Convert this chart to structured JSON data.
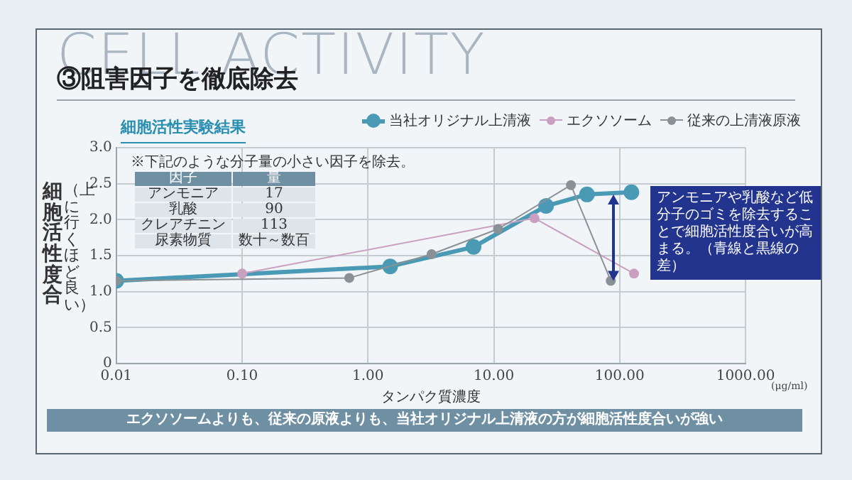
{
  "chart_data": {
    "type": "line",
    "title": "③阻害因子を徹底除去",
    "subtitle": "細胞活性実験結果",
    "xlabel": "タンパク質濃度",
    "ylabel": "細胞活性度合",
    "log": "x",
    "xlim": [
      0.01,
      1000
    ],
    "xticks": [
      {
        "value": 0.01,
        "label": "0.01"
      },
      {
        "value": 0.1,
        "label": "0.10"
      },
      {
        "value": 1,
        "label": "1.00"
      },
      {
        "value": 10,
        "label": "10.00"
      },
      {
        "value": 100,
        "label": "100.00"
      },
      {
        "value": 1000,
        "label": "1000.00"
      }
    ],
    "ylim": [
      0,
      3
    ],
    "yticks": [
      0,
      {
        "value": 0.5,
        "label": "0.5"
      },
      {
        "value": 1,
        "label": "1.0"
      },
      {
        "value": 1.5,
        "label": "1.5"
      },
      {
        "value": 2,
        "label": "2.0"
      },
      {
        "value": 2.5,
        "label": "2.5"
      },
      {
        "value": 3,
        "label": "3.0"
      }
    ],
    "grid": true,
    "legend": "top right",
    "marker": "circle",
    "series": [
      {
        "name": "当社オリジナル上清液",
        "color": "#4a9ab5",
        "x": [
          0.01,
          1.5,
          6.9,
          26,
          55,
          124
        ],
        "values": [
          1.15,
          1.35,
          1.62,
          2.19,
          2.35,
          2.38
        ]
      },
      {
        "name": "エクソソーム",
        "color": "#c9a0c0",
        "x": [
          0.1,
          21,
          130
        ],
        "values": [
          1.25,
          2.02,
          1.25
        ]
      },
      {
        "name": "従来の上清液原液",
        "color": "#8a9196",
        "x": [
          0.01,
          0.71,
          3.2,
          10.8,
          41,
          85
        ],
        "values": [
          1.15,
          1.19,
          1.52,
          1.87,
          2.48,
          1.15
        ]
      }
    ],
    "annotations": [
      "CELL ACTIVITY",
      "※下記のような分子量の小さい因子を除去。",
      "因子",
      "量",
      "アンモニア",
      "17",
      "乳酸",
      "90",
      "クレアチニン",
      "113",
      "尿素物質",
      "数十～数百",
      {
        "text": "アンモニアや乳酸など低分子のゴミを除去することで細胞活性度合いが高まる。（青線と黒線の差）",
        "x": 90,
        "y": 2.35
      },
      "(μg/ml)",
      "エクソソームよりも、従来の原液よりも、当社オリジナル上清液の方が細胞活性度合いが強い",
      "（上に行くほど良い）"
    ]
  }
}
